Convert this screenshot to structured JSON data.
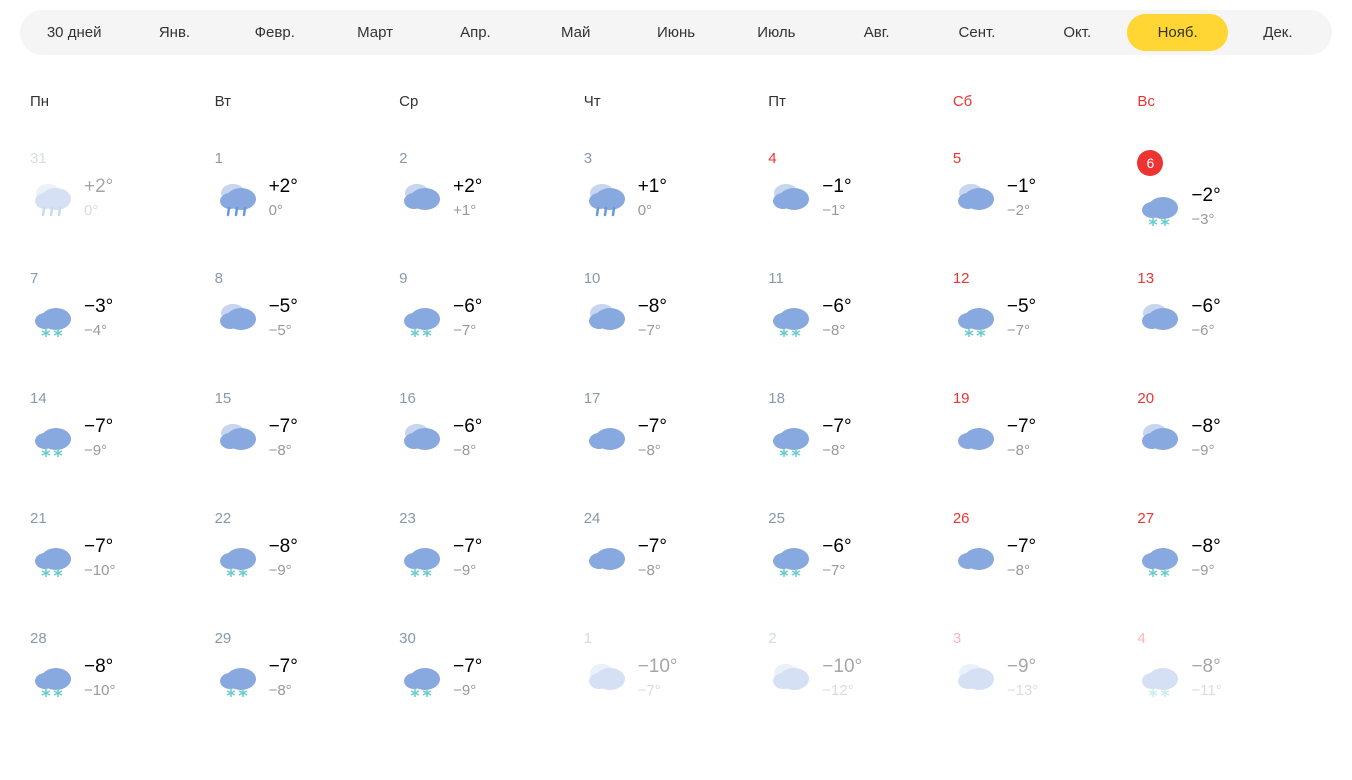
{
  "colors": {
    "cloud": "#88a8e0",
    "cloud_light": "#c7d5ef",
    "rain": "#6699dd",
    "snow": "#66cccc",
    "weekend": "#ee3333",
    "today_bg": "#ee3333",
    "tab_active": "#ffd633",
    "text_muted": "#8899aa",
    "text_low": "#999999"
  },
  "tabs": [
    {
      "label": "30 дней",
      "active": false
    },
    {
      "label": "Янв.",
      "active": false
    },
    {
      "label": "Февр.",
      "active": false
    },
    {
      "label": "Март",
      "active": false
    },
    {
      "label": "Апр.",
      "active": false
    },
    {
      "label": "Май",
      "active": false
    },
    {
      "label": "Июнь",
      "active": false
    },
    {
      "label": "Июль",
      "active": false
    },
    {
      "label": "Авг.",
      "active": false
    },
    {
      "label": "Сент.",
      "active": false
    },
    {
      "label": "Окт.",
      "active": false
    },
    {
      "label": "Нояб.",
      "active": true
    },
    {
      "label": "Дек.",
      "active": false
    }
  ],
  "weekdays": [
    {
      "label": "Пн",
      "weekend": false
    },
    {
      "label": "Вт",
      "weekend": false
    },
    {
      "label": "Ср",
      "weekend": false
    },
    {
      "label": "Чт",
      "weekend": false
    },
    {
      "label": "Пт",
      "weekend": false
    },
    {
      "label": "Сб",
      "weekend": true
    },
    {
      "label": "Вс",
      "weekend": true
    }
  ],
  "days": [
    {
      "date": "31",
      "weekend": false,
      "today": false,
      "faded": true,
      "icon": "rain",
      "high": "+2°",
      "low": "0°"
    },
    {
      "date": "1",
      "weekend": false,
      "today": false,
      "faded": false,
      "icon": "rain",
      "high": "+2°",
      "low": "0°"
    },
    {
      "date": "2",
      "weekend": false,
      "today": false,
      "faded": false,
      "icon": "cloudy",
      "high": "+2°",
      "low": "+1°"
    },
    {
      "date": "3",
      "weekend": false,
      "today": false,
      "faded": false,
      "icon": "rain",
      "high": "+1°",
      "low": "0°"
    },
    {
      "date": "4",
      "weekend": true,
      "today": false,
      "faded": false,
      "icon": "cloudy",
      "high": "−1°",
      "low": "−1°"
    },
    {
      "date": "5",
      "weekend": true,
      "today": false,
      "faded": false,
      "icon": "cloudy",
      "high": "−1°",
      "low": "−2°"
    },
    {
      "date": "6",
      "weekend": true,
      "today": true,
      "faded": false,
      "icon": "snow",
      "high": "−2°",
      "low": "−3°"
    },
    {
      "date": "7",
      "weekend": false,
      "today": false,
      "faded": false,
      "icon": "snow",
      "high": "−3°",
      "low": "−4°"
    },
    {
      "date": "8",
      "weekend": false,
      "today": false,
      "faded": false,
      "icon": "cloudy",
      "high": "−5°",
      "low": "−5°"
    },
    {
      "date": "9",
      "weekend": false,
      "today": false,
      "faded": false,
      "icon": "snow",
      "high": "−6°",
      "low": "−7°"
    },
    {
      "date": "10",
      "weekend": false,
      "today": false,
      "faded": false,
      "icon": "cloudy",
      "high": "−8°",
      "low": "−7°"
    },
    {
      "date": "11",
      "weekend": false,
      "today": false,
      "faded": false,
      "icon": "snow",
      "high": "−6°",
      "low": "−8°"
    },
    {
      "date": "12",
      "weekend": true,
      "today": false,
      "faded": false,
      "icon": "snow",
      "high": "−5°",
      "low": "−7°"
    },
    {
      "date": "13",
      "weekend": true,
      "today": false,
      "faded": false,
      "icon": "cloudy",
      "high": "−6°",
      "low": "−6°"
    },
    {
      "date": "14",
      "weekend": false,
      "today": false,
      "faded": false,
      "icon": "snow",
      "high": "−7°",
      "low": "−9°"
    },
    {
      "date": "15",
      "weekend": false,
      "today": false,
      "faded": false,
      "icon": "cloudy",
      "high": "−7°",
      "low": "−8°"
    },
    {
      "date": "16",
      "weekend": false,
      "today": false,
      "faded": false,
      "icon": "cloudy",
      "high": "−6°",
      "low": "−8°"
    },
    {
      "date": "17",
      "weekend": false,
      "today": false,
      "faded": false,
      "icon": "cloud",
      "high": "−7°",
      "low": "−8°"
    },
    {
      "date": "18",
      "weekend": false,
      "today": false,
      "faded": false,
      "icon": "snow",
      "high": "−7°",
      "low": "−8°"
    },
    {
      "date": "19",
      "weekend": true,
      "today": false,
      "faded": false,
      "icon": "cloud",
      "high": "−7°",
      "low": "−8°"
    },
    {
      "date": "20",
      "weekend": true,
      "today": false,
      "faded": false,
      "icon": "cloudy",
      "high": "−8°",
      "low": "−9°"
    },
    {
      "date": "21",
      "weekend": false,
      "today": false,
      "faded": false,
      "icon": "snow",
      "high": "−7°",
      "low": "−10°"
    },
    {
      "date": "22",
      "weekend": false,
      "today": false,
      "faded": false,
      "icon": "snow",
      "high": "−8°",
      "low": "−9°"
    },
    {
      "date": "23",
      "weekend": false,
      "today": false,
      "faded": false,
      "icon": "snow",
      "high": "−7°",
      "low": "−9°"
    },
    {
      "date": "24",
      "weekend": false,
      "today": false,
      "faded": false,
      "icon": "cloud",
      "high": "−7°",
      "low": "−8°"
    },
    {
      "date": "25",
      "weekend": false,
      "today": false,
      "faded": false,
      "icon": "snow",
      "high": "−6°",
      "low": "−7°"
    },
    {
      "date": "26",
      "weekend": true,
      "today": false,
      "faded": false,
      "icon": "cloud",
      "high": "−7°",
      "low": "−8°"
    },
    {
      "date": "27",
      "weekend": true,
      "today": false,
      "faded": false,
      "icon": "snow",
      "high": "−8°",
      "low": "−9°"
    },
    {
      "date": "28",
      "weekend": false,
      "today": false,
      "faded": false,
      "icon": "snow",
      "high": "−8°",
      "low": "−10°"
    },
    {
      "date": "29",
      "weekend": false,
      "today": false,
      "faded": false,
      "icon": "snow",
      "high": "−7°",
      "low": "−8°"
    },
    {
      "date": "30",
      "weekend": false,
      "today": false,
      "faded": false,
      "icon": "snow",
      "high": "−7°",
      "low": "−9°"
    },
    {
      "date": "1",
      "weekend": false,
      "today": false,
      "faded": true,
      "icon": "cloudy",
      "high": "−10°",
      "low": "−7°"
    },
    {
      "date": "2",
      "weekend": false,
      "today": false,
      "faded": true,
      "icon": "cloudy",
      "high": "−10°",
      "low": "−12°"
    },
    {
      "date": "3",
      "weekend": true,
      "today": false,
      "faded": true,
      "icon": "cloudy",
      "high": "−9°",
      "low": "−13°"
    },
    {
      "date": "4",
      "weekend": true,
      "today": false,
      "faded": true,
      "icon": "snow",
      "high": "−8°",
      "low": "−11°"
    }
  ]
}
